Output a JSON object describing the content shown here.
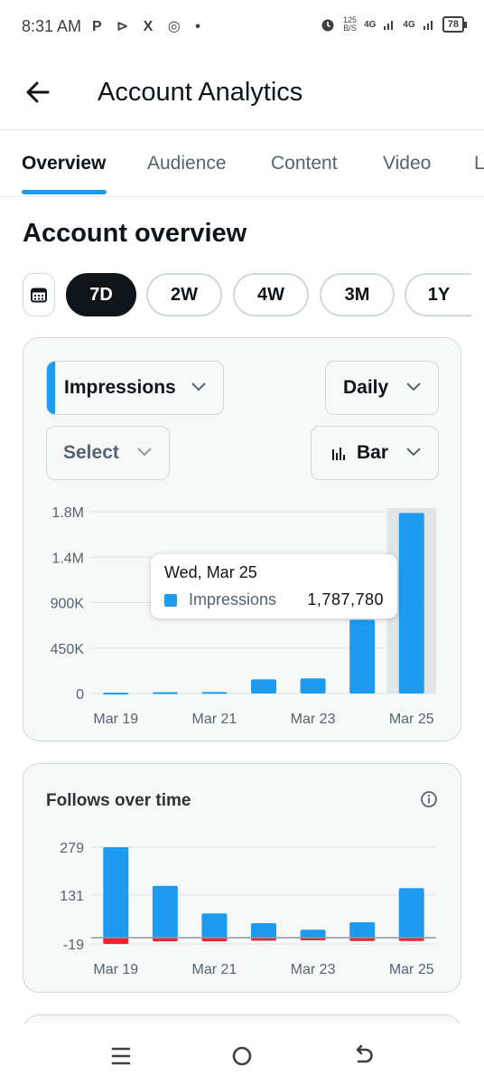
{
  "status_bar": {
    "time": "8:31 AM",
    "app_icons": "P ⊳ X ◎ •",
    "speed_top": "125",
    "speed_unit": "B/S",
    "net1": "4G",
    "net2": "4G",
    "battery": "78"
  },
  "header": {
    "title": "Account Analytics"
  },
  "tabs": [
    "Overview",
    "Audience",
    "Content",
    "Video",
    "L"
  ],
  "section": {
    "title": "Account overview"
  },
  "ranges": [
    "7D",
    "2W",
    "4W",
    "3M",
    "1Y"
  ],
  "controls": {
    "metric": "Impressions",
    "interval": "Daily",
    "compare": "Select",
    "chart_type": "Bar"
  },
  "tooltip": {
    "date": "Wed, Mar 25",
    "series": "Impressions",
    "value": "1,787,780"
  },
  "follows_card": {
    "title": "Follows over time"
  },
  "colors": {
    "accent": "#1d9bf0",
    "negative": "#f4212e",
    "active_range_bg": "#0f1419",
    "card_bg": "#f7f9f9"
  },
  "chart_data": [
    {
      "type": "bar",
      "title": "Impressions",
      "categories": [
        "Mar 19",
        "Mar 20",
        "Mar 21",
        "Mar 22",
        "Mar 23",
        "Mar 24",
        "Mar 25"
      ],
      "x_tick_labels": [
        "Mar 19",
        "Mar 21",
        "Mar 23",
        "Mar 25"
      ],
      "y_tick_labels": [
        "1.8M",
        "1.4M",
        "900K",
        "450K",
        "0"
      ],
      "y_ticks": [
        1800000,
        1350000,
        900000,
        450000,
        0
      ],
      "ylim": [
        0,
        1800000
      ],
      "series": [
        {
          "name": "Impressions",
          "values": [
            8000,
            12000,
            15000,
            140000,
            150000,
            730000,
            1787780
          ]
        }
      ],
      "highlight_index": 6,
      "grid": true
    },
    {
      "type": "bar",
      "title": "Follows over time",
      "categories": [
        "Mar 19",
        "Mar 20",
        "Mar 21",
        "Mar 22",
        "Mar 23",
        "Mar 24",
        "Mar 25"
      ],
      "x_tick_labels": [
        "Mar 19",
        "Mar 21",
        "Mar 23",
        "Mar 25"
      ],
      "y_tick_labels": [
        "279",
        "131",
        "-19"
      ],
      "y_ticks": [
        279,
        131,
        -19
      ],
      "ylim": [
        -19,
        279
      ],
      "series": [
        {
          "name": "Follows",
          "values": [
            279,
            160,
            75,
            45,
            25,
            48,
            153
          ]
        },
        {
          "name": "Unfollows",
          "values": [
            -19,
            -11,
            -11,
            -9,
            -8,
            -10,
            -10
          ]
        }
      ],
      "grid": true
    }
  ]
}
